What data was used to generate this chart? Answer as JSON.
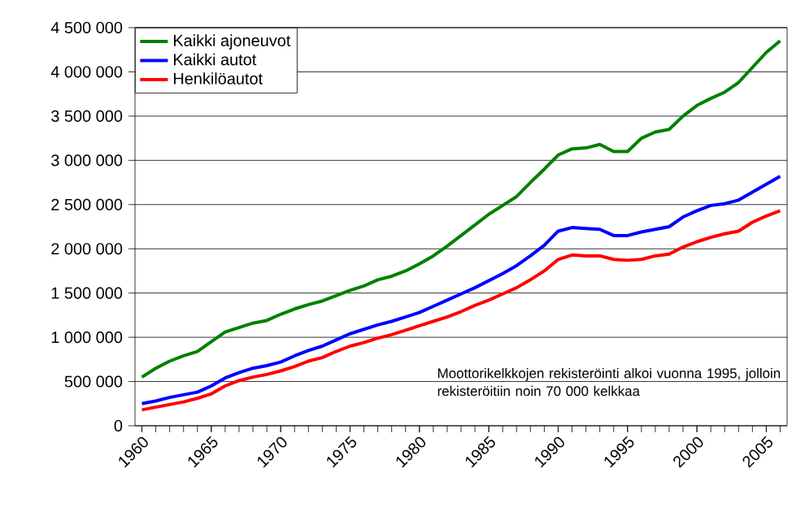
{
  "chart_data": {
    "type": "line",
    "x": [
      1960,
      1961,
      1962,
      1963,
      1964,
      1965,
      1966,
      1967,
      1968,
      1969,
      1970,
      1971,
      1972,
      1973,
      1974,
      1975,
      1976,
      1977,
      1978,
      1979,
      1980,
      1981,
      1982,
      1983,
      1984,
      1985,
      1986,
      1987,
      1988,
      1989,
      1990,
      1991,
      1992,
      1993,
      1994,
      1995,
      1996,
      1997,
      1998,
      1999,
      2000,
      2001,
      2002,
      2003,
      2004,
      2005,
      2006
    ],
    "series": [
      {
        "name": "Kaikki ajoneuvot",
        "color": "#008000",
        "values": [
          550000,
          650000,
          730000,
          790000,
          840000,
          950000,
          1060000,
          1110000,
          1160000,
          1190000,
          1260000,
          1320000,
          1370000,
          1410000,
          1470000,
          1530000,
          1580000,
          1650000,
          1690000,
          1750000,
          1830000,
          1920000,
          2030000,
          2150000,
          2270000,
          2390000,
          2490000,
          2590000,
          2750000,
          2900000,
          3060000,
          3130000,
          3140000,
          3180000,
          3100000,
          3100000,
          3250000,
          3320000,
          3350000,
          3500000,
          3620000,
          3700000,
          3770000,
          3880000,
          4050000,
          4220000,
          4350000
        ]
      },
      {
        "name": "Kaikki autot",
        "color": "#0000ff",
        "values": [
          250000,
          280000,
          320000,
          350000,
          380000,
          450000,
          540000,
          600000,
          650000,
          680000,
          720000,
          790000,
          850000,
          900000,
          970000,
          1040000,
          1090000,
          1140000,
          1180000,
          1230000,
          1280000,
          1350000,
          1420000,
          1490000,
          1560000,
          1640000,
          1720000,
          1810000,
          1920000,
          2040000,
          2200000,
          2240000,
          2230000,
          2220000,
          2150000,
          2150000,
          2190000,
          2220000,
          2250000,
          2360000,
          2430000,
          2490000,
          2510000,
          2550000,
          2640000,
          2730000,
          2820000
        ]
      },
      {
        "name": "Henkilöautot",
        "color": "#ff0000",
        "values": [
          180000,
          210000,
          240000,
          270000,
          310000,
          360000,
          450000,
          510000,
          550000,
          580000,
          620000,
          670000,
          730000,
          770000,
          840000,
          900000,
          940000,
          990000,
          1030000,
          1080000,
          1130000,
          1180000,
          1230000,
          1290000,
          1360000,
          1420000,
          1490000,
          1560000,
          1650000,
          1750000,
          1880000,
          1930000,
          1920000,
          1920000,
          1880000,
          1870000,
          1880000,
          1920000,
          1940000,
          2020000,
          2080000,
          2130000,
          2170000,
          2200000,
          2300000,
          2370000,
          2430000
        ]
      }
    ],
    "xlim": [
      1959.5,
      2006.5
    ],
    "xticks": [
      1960,
      1965,
      1970,
      1975,
      1980,
      1985,
      1990,
      1995,
      2000,
      2005
    ],
    "ylim": [
      0,
      4500000
    ],
    "yticks": [
      0,
      {
        "value": 500000,
        "label": "500 000"
      },
      {
        "value": 1000000,
        "label": "1 000 000"
      },
      {
        "value": 1500000,
        "label": "1 500 000"
      },
      {
        "value": 2000000,
        "label": "2 000 000"
      },
      {
        "value": 2500000,
        "label": "2 500 000"
      },
      {
        "value": 3000000,
        "label": "3 000 000"
      },
      {
        "value": 3500000,
        "label": "3 500 000"
      },
      {
        "value": 4000000,
        "label": "4 000 000"
      },
      {
        "value": 4500000,
        "label": "4 500 000"
      }
    ],
    "grid": "y",
    "legend": "top left",
    "marker": "none",
    "line_style": "solid",
    "annotations": [
      "Moottorikelkkojen rekisteröinti alkoi vuonna 1995, jolloin rekisteröitiin noin 70 000 kelkkaa"
    ]
  }
}
